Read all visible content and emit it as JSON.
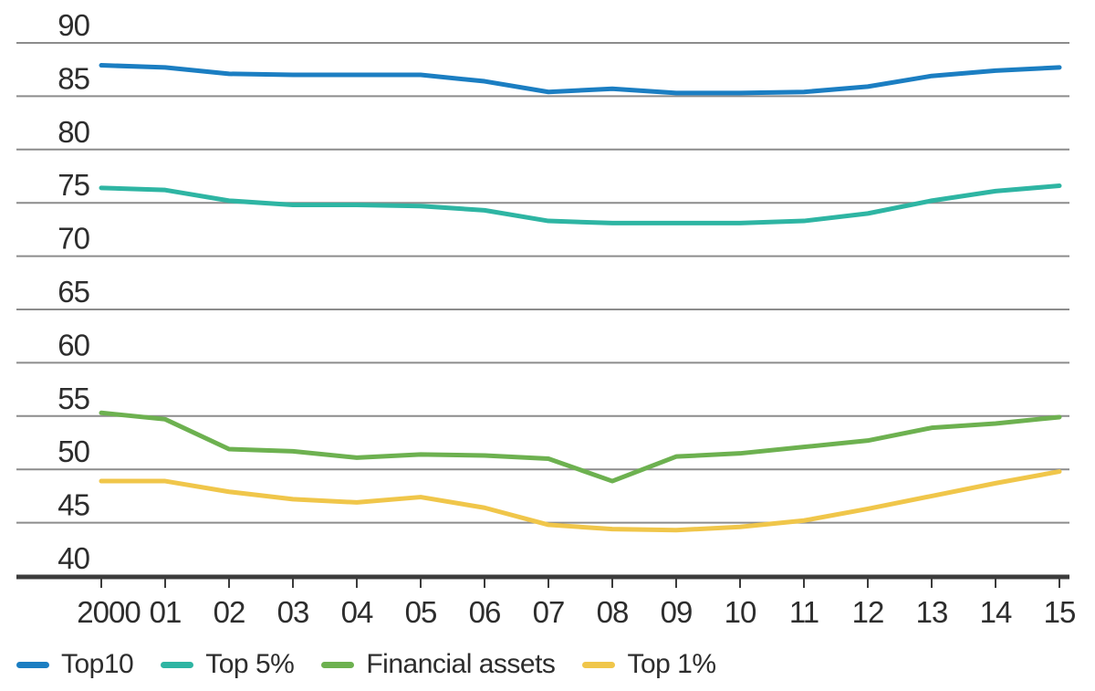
{
  "chart_data": {
    "type": "line",
    "title": "",
    "xlabel": "",
    "ylabel": "",
    "categories": [
      "2000",
      "01",
      "02",
      "03",
      "04",
      "05",
      "06",
      "07",
      "08",
      "09",
      "10",
      "11",
      "12",
      "13",
      "14",
      "15"
    ],
    "series": [
      {
        "name": "Top10",
        "color": "#1b7ec2",
        "values": [
          87.9,
          87.7,
          87.1,
          87.0,
          87.0,
          87.0,
          86.4,
          85.4,
          85.7,
          85.3,
          85.3,
          85.4,
          85.9,
          86.9,
          87.4,
          87.7
        ]
      },
      {
        "name": "Top 5%",
        "color": "#2eb5a3",
        "values": [
          76.4,
          76.2,
          75.2,
          74.8,
          74.8,
          74.7,
          74.3,
          73.3,
          73.1,
          73.1,
          73.1,
          73.3,
          74.0,
          75.2,
          76.1,
          76.6
        ]
      },
      {
        "name": "Financial assets",
        "color": "#6db150",
        "values": [
          55.3,
          54.7,
          51.9,
          51.7,
          51.1,
          51.4,
          51.3,
          51.0,
          48.9,
          51.2,
          51.5,
          52.1,
          52.7,
          53.9,
          54.3,
          54.9
        ]
      },
      {
        "name": "Top 1%",
        "color": "#f0c64a",
        "values": [
          48.9,
          48.9,
          47.9,
          47.2,
          46.9,
          47.4,
          46.4,
          44.8,
          44.4,
          44.3,
          44.6,
          45.2,
          46.3,
          47.5,
          48.7,
          49.8
        ]
      }
    ],
    "ylim": [
      40,
      90
    ],
    "yticks": [
      90,
      85,
      80,
      75,
      70,
      65,
      60,
      55,
      50,
      45,
      40
    ],
    "grid": "horizontal",
    "legend_position": "bottom-left",
    "colors": {
      "grid_line": "#8c8c8c",
      "axis_line": "#3c3c3c",
      "tick_mark": "#3c3c3c",
      "text": "#2d2d2d",
      "background": "#ffffff"
    }
  }
}
